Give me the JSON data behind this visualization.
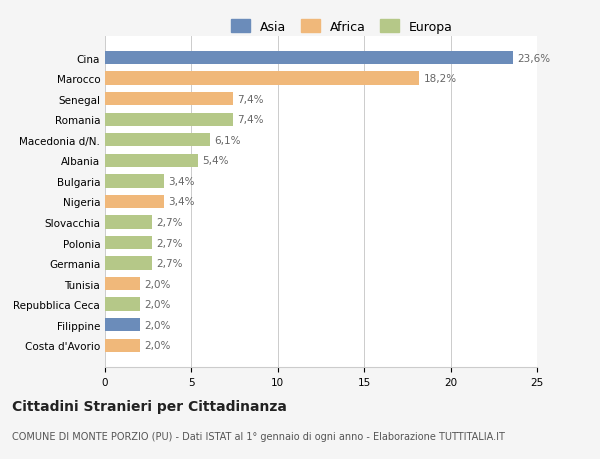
{
  "categories": [
    "Cina",
    "Marocco",
    "Senegal",
    "Romania",
    "Macedonia d/N.",
    "Albania",
    "Bulgaria",
    "Nigeria",
    "Slovacchia",
    "Polonia",
    "Germania",
    "Tunisia",
    "Repubblica Ceca",
    "Filippine",
    "Costa d'Avorio"
  ],
  "values": [
    23.6,
    18.2,
    7.4,
    7.4,
    6.1,
    5.4,
    3.4,
    3.4,
    2.7,
    2.7,
    2.7,
    2.0,
    2.0,
    2.0,
    2.0
  ],
  "labels": [
    "23,6%",
    "18,2%",
    "7,4%",
    "7,4%",
    "6,1%",
    "5,4%",
    "3,4%",
    "3,4%",
    "2,7%",
    "2,7%",
    "2,7%",
    "2,0%",
    "2,0%",
    "2,0%",
    "2,0%"
  ],
  "colors": [
    "#6b8cba",
    "#f0b87a",
    "#f0b87a",
    "#b5c888",
    "#b5c888",
    "#b5c888",
    "#b5c888",
    "#f0b87a",
    "#b5c888",
    "#b5c888",
    "#b5c888",
    "#f0b87a",
    "#b5c888",
    "#6b8cba",
    "#f0b87a"
  ],
  "legend_labels": [
    "Asia",
    "Africa",
    "Europa"
  ],
  "legend_colors": [
    "#6b8cba",
    "#f0b87a",
    "#b5c888"
  ],
  "xlim": [
    0,
    25
  ],
  "xticks": [
    0,
    5,
    10,
    15,
    20,
    25
  ],
  "title": "Cittadini Stranieri per Cittadinanza",
  "subtitle": "COMUNE DI MONTE PORZIO (PU) - Dati ISTAT al 1° gennaio di ogni anno - Elaborazione TUTTITALIA.IT",
  "bg_color": "#f5f5f5",
  "plot_bg_color": "#ffffff",
  "grid_color": "#cccccc",
  "label_fontsize": 7.5,
  "title_fontsize": 10,
  "subtitle_fontsize": 7,
  "bar_height": 0.65
}
